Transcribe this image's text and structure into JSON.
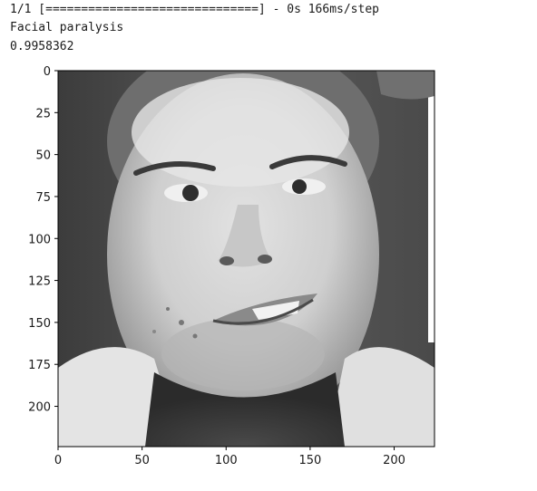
{
  "output": {
    "progress_line": "1/1 [==============================] - 0s 166ms/step",
    "predicted_label": "Facial paralysis",
    "confidence": "0.9958362"
  },
  "figure": {
    "image_subject": "grayscale-face-photo",
    "x_ticks": [
      {
        "value": 0,
        "label": "0"
      },
      {
        "value": 50,
        "label": "50"
      },
      {
        "value": 100,
        "label": "100"
      },
      {
        "value": 150,
        "label": "150"
      },
      {
        "value": 200,
        "label": "200"
      }
    ],
    "y_ticks": [
      {
        "value": 0,
        "label": "0"
      },
      {
        "value": 25,
        "label": "25"
      },
      {
        "value": 50,
        "label": "50"
      },
      {
        "value": 75,
        "label": "75"
      },
      {
        "value": 100,
        "label": "100"
      },
      {
        "value": 125,
        "label": "125"
      },
      {
        "value": 150,
        "label": "150"
      },
      {
        "value": 175,
        "label": "175"
      },
      {
        "value": 200,
        "label": "200"
      }
    ],
    "axis_extent": {
      "x": [
        0,
        224
      ],
      "y": [
        224,
        0
      ]
    }
  }
}
